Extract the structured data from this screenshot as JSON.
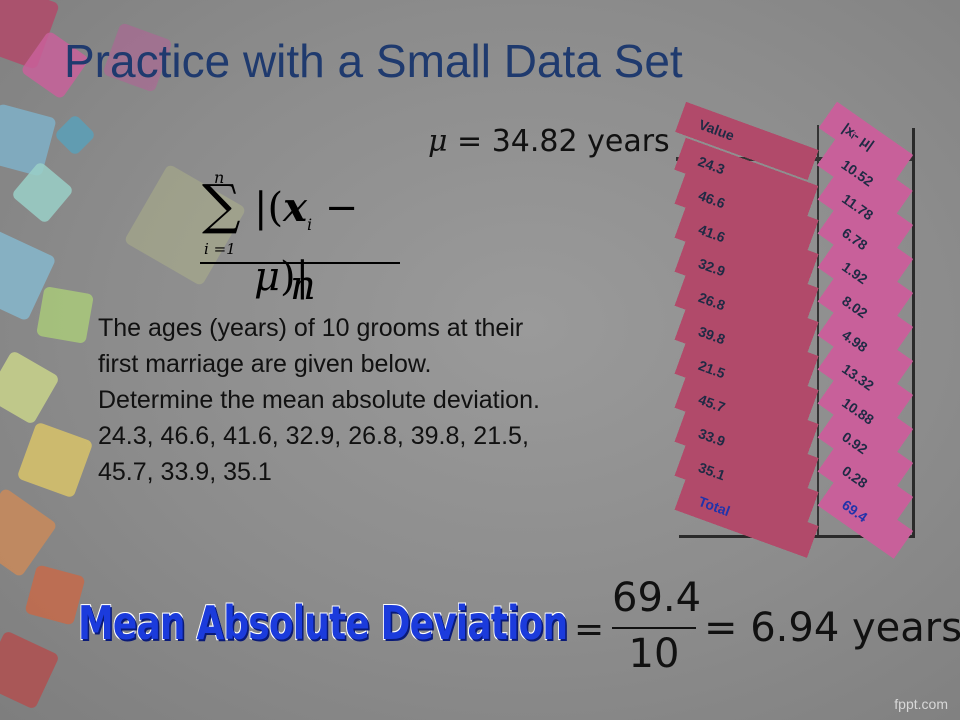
{
  "title": "Practice with a Small Data Set",
  "mu_equation": {
    "symbol": "μ",
    "text": " = 34.82 years"
  },
  "formula": {
    "upper": "n",
    "lower": "i =1",
    "sigma": "∑",
    "term_x": "x",
    "term_sub": "i",
    "term_mu": "μ",
    "denominator": "n"
  },
  "prompt": {
    "text": "The ages (years) of 10 grooms at their first marriage are given below. Determine the mean absolute deviation.",
    "data_line": "24.3, 46.6, 41.6, 32.9, 26.8, 39.8, 21.5, 45.7, 33.9, 35.1"
  },
  "table": {
    "headers": [
      "Value",
      "|xᵢ- μ|"
    ],
    "rows": [
      [
        "24.3",
        "10.52"
      ],
      [
        "46.6",
        "11.78"
      ],
      [
        "41.6",
        "6.78"
      ],
      [
        "32.9",
        "1.92"
      ],
      [
        "26.8",
        "8.02"
      ],
      [
        "39.8",
        "4.98"
      ],
      [
        "21.5",
        "13.32"
      ],
      [
        "45.7",
        "10.88"
      ],
      [
        "33.9",
        "0.92"
      ],
      [
        "35.1",
        "0.28"
      ]
    ],
    "total": [
      "Total",
      "69.4"
    ]
  },
  "mad": {
    "title": "Mean Absolute Deviation",
    "equals": "=",
    "numerator": "69.4",
    "denominator": "10",
    "result": "= 6.94 years"
  },
  "watermark": "fppt.com"
}
